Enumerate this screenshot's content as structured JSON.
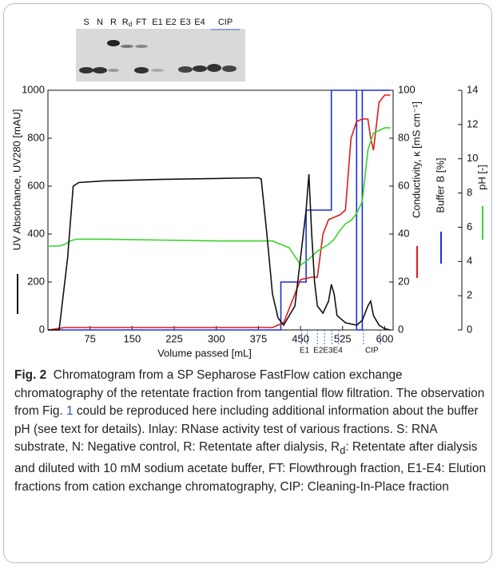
{
  "chart_data": {
    "type": "line",
    "x_label": "Volume passed [mL]",
    "y_label": "UV Absorbance, UV280 [mAU]",
    "y2_label": "Conductivity, κ [mS cm⁻¹]",
    "y3_label": "Buffer B [%]",
    "y4_label": "pH [-]",
    "xlim": [
      0,
      615
    ],
    "xticks": [
      75,
      150,
      225,
      300,
      375,
      450,
      525,
      600
    ],
    "ylim": [
      0,
      1000
    ],
    "yticks": [
      0,
      200,
      400,
      600,
      800,
      1000
    ],
    "y2lim": [
      0,
      100
    ],
    "y2ticks": [
      0,
      20,
      40,
      60,
      80,
      100
    ],
    "y4lim": [
      0,
      14
    ],
    "y4ticks": [
      0,
      2,
      4,
      6,
      8,
      10,
      12,
      14
    ],
    "series": [
      {
        "name": "UV",
        "color": "#111111",
        "axis": "y",
        "x": [
          0,
          20,
          35,
          45,
          55,
          100,
          200,
          300,
          375,
          380,
          390,
          400,
          410,
          420,
          440,
          450,
          460,
          465,
          470,
          475,
          480,
          490,
          500,
          505,
          510,
          515,
          530,
          550,
          560,
          570,
          575,
          580,
          590,
          600,
          610
        ],
        "values": [
          0,
          0,
          300,
          600,
          615,
          622,
          628,
          632,
          635,
          630,
          400,
          150,
          50,
          20,
          100,
          300,
          500,
          650,
          400,
          200,
          100,
          70,
          120,
          190,
          150,
          60,
          30,
          20,
          40,
          100,
          120,
          60,
          20,
          5,
          0
        ]
      },
      {
        "name": "Conductivity",
        "color": "#e01b1b",
        "axis": "y2",
        "x": [
          0,
          30,
          100,
          400,
          420,
          440,
          450,
          470,
          480,
          490,
          500,
          510,
          520,
          530,
          540,
          550,
          560,
          570,
          575,
          580,
          590,
          600,
          610
        ],
        "values": [
          0,
          1,
          1,
          1,
          3,
          15,
          21,
          22,
          22,
          40,
          46,
          47,
          48,
          50,
          80,
          87,
          88,
          88,
          80,
          75,
          95,
          98,
          98
        ]
      },
      {
        "name": "Buffer B",
        "color": "#1a2fd6",
        "axis": "y2",
        "x": [
          0,
          415,
          415,
          460,
          460,
          505,
          505,
          550,
          550,
          560,
          560,
          610
        ],
        "values": [
          0,
          0,
          20,
          20,
          50,
          50,
          100,
          100,
          0,
          0,
          100,
          100
        ]
      },
      {
        "name": "pH",
        "color": "#3ad32a",
        "axis": "y4",
        "x": [
          0,
          20,
          30,
          40,
          50,
          100,
          200,
          300,
          400,
          430,
          450,
          460,
          480,
          500,
          510,
          520,
          530,
          540,
          550,
          560,
          570,
          580,
          600,
          610
        ],
        "values": [
          4.9,
          4.9,
          5.0,
          5.2,
          5.3,
          5.3,
          5.25,
          5.2,
          5.2,
          4.8,
          3.8,
          4.0,
          4.6,
          5.0,
          5.3,
          5.8,
          6.2,
          6.4,
          6.8,
          7.5,
          10.5,
          11.5,
          11.8,
          11.8
        ]
      }
    ],
    "fractions": [
      {
        "label": "E1",
        "x": [
          452,
          462
        ]
      },
      {
        "label": "E2E3E4",
        "x": [
          480,
          493,
          506,
          518
        ]
      },
      {
        "label": "CIP",
        "x": [
          562,
          592
        ]
      }
    ]
  },
  "gel_lanes": [
    {
      "text": "S"
    },
    {
      "text": "N"
    },
    {
      "text": "R"
    },
    {
      "text": "R",
      "sub": "d"
    },
    {
      "text": "FT"
    },
    {
      "text": "E1"
    },
    {
      "text": "E2"
    },
    {
      "text": "E3"
    },
    {
      "text": "E4"
    },
    {
      "text": "CIP"
    }
  ],
  "caption": {
    "label": "Fig. 2",
    "text1": "Chromatogram from a SP Sepharose FastFlow cation exchange chromatography of the retentate fraction from tangential flow filtration. The observation from Fig.",
    "link": "1",
    "text2": "could be reproduced here including additional information about the buffer pH (see text for details). Inlay: RNase activity test of various fractions. S: RNA substrate, N: Negative control, R: Retentate after dialysis, R",
    "sub": "d",
    "text3": ": Retentate after dialysis and diluted with 10 mM sodium acetate buffer, FT: Flowthrough fraction, E1-E4: Elution fractions from cation exchange chromatography, CIP: Cleaning-In-Place fraction"
  }
}
